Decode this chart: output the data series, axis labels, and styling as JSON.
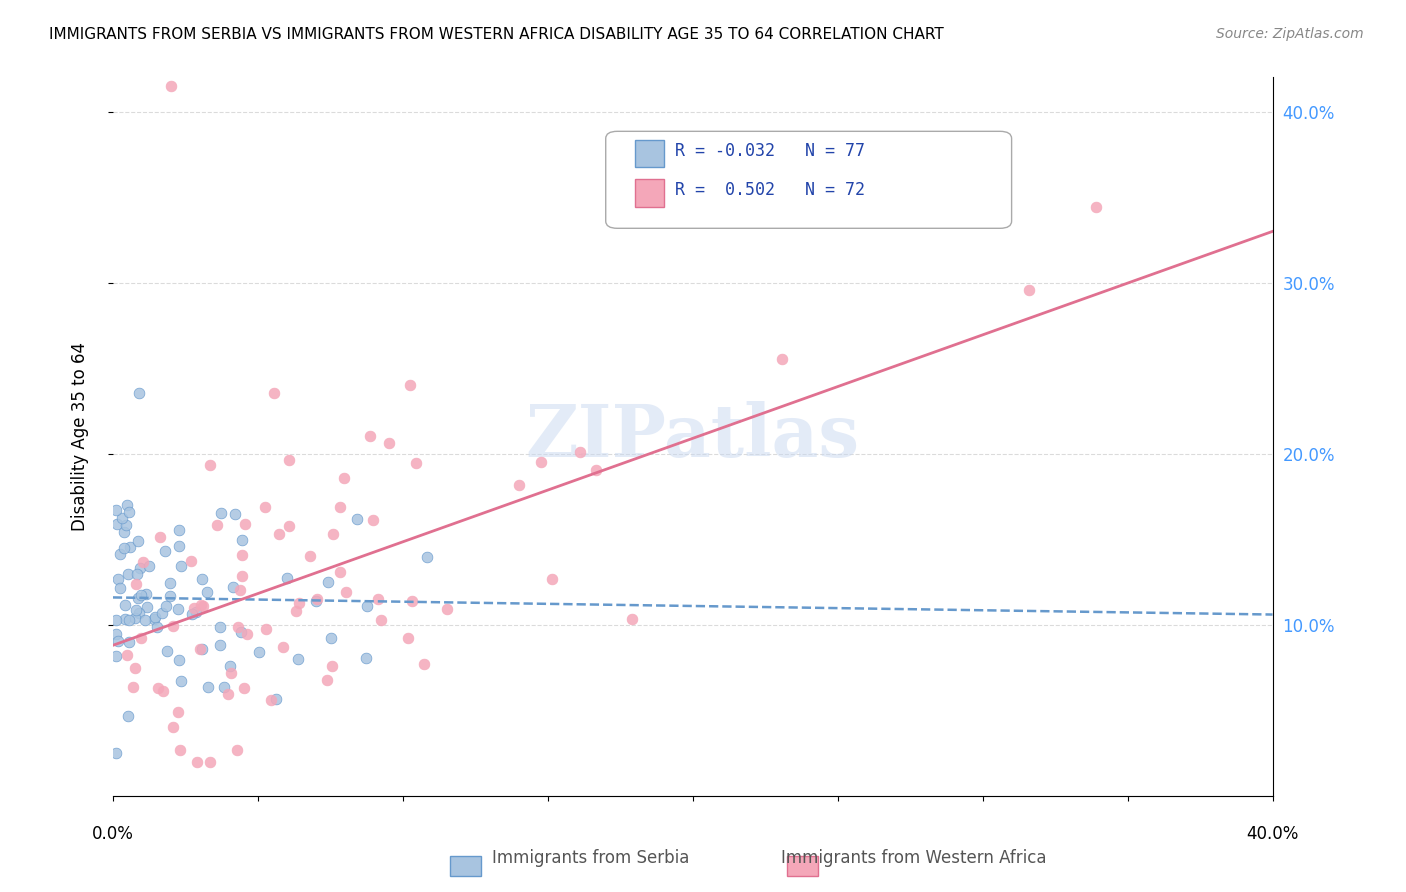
{
  "title": "IMMIGRANTS FROM SERBIA VS IMMIGRANTS FROM WESTERN AFRICA DISABILITY AGE 35 TO 64 CORRELATION CHART",
  "source": "Source: ZipAtlas.com",
  "ylabel": "Disability Age 35 to 64",
  "legend_label_1": "Immigrants from Serbia",
  "legend_label_2": "Immigrants from Western Africa",
  "R1": "-0.032",
  "N1": "77",
  "R2": "0.502",
  "N2": "72",
  "color_serbia": "#a8c4e0",
  "color_western_africa": "#f4a7b9",
  "color_serbia_line": "#6699cc",
  "color_western_africa_line": "#e07090",
  "watermark": "ZIPatlas",
  "xmin": 0.0,
  "xmax": 0.4,
  "ymin": 0.0,
  "ymax": 0.42,
  "yticks": [
    0.1,
    0.2,
    0.3,
    0.4
  ],
  "ytick_labels": [
    "10.0%",
    "20.0%",
    "30.0%",
    "40.0%"
  ],
  "serbia_line_x": [
    0.0,
    0.4
  ],
  "serbia_line_y": [
    0.116,
    0.106
  ],
  "western_line_x": [
    0.0,
    0.4
  ],
  "western_line_y": [
    0.088,
    0.33
  ]
}
